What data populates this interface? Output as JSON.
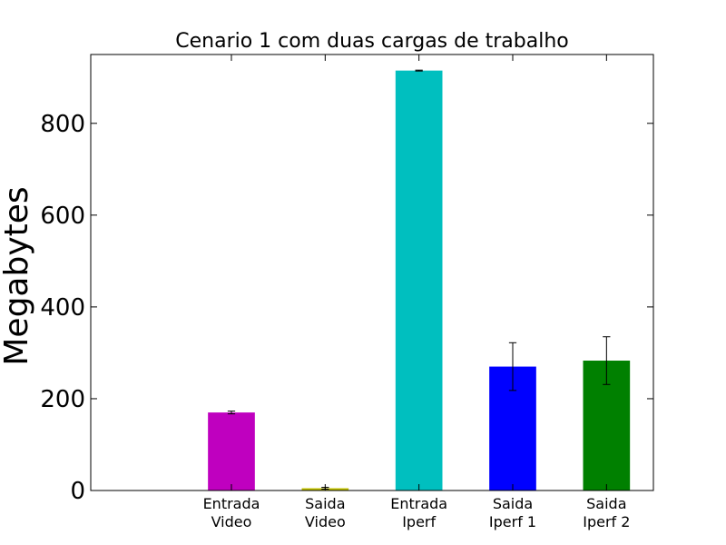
{
  "chart_data": {
    "type": "bar",
    "title": "Cenario 1 com duas cargas de trabalho",
    "xlabel": "",
    "ylabel": "Megabytes",
    "ylim": [
      0,
      950
    ],
    "xlim": [
      -0.5,
      5.5
    ],
    "yticks": [
      0,
      200,
      400,
      600,
      800
    ],
    "grid": false,
    "legend": "none",
    "categories": [
      [
        "Entrada",
        "Video"
      ],
      [
        "Saida",
        "Video"
      ],
      [
        "Entrada",
        "Iperf"
      ],
      [
        "Saida",
        "Iperf 1"
      ],
      [
        "Saida",
        "Iperf 2"
      ]
    ],
    "values": [
      170,
      5,
      915,
      270,
      283
    ],
    "errors": [
      3,
      2,
      1,
      52,
      52
    ],
    "colors": [
      "#bf00bf",
      "#bfbf00",
      "#00bfbf",
      "#0000ff",
      "#008000"
    ]
  }
}
